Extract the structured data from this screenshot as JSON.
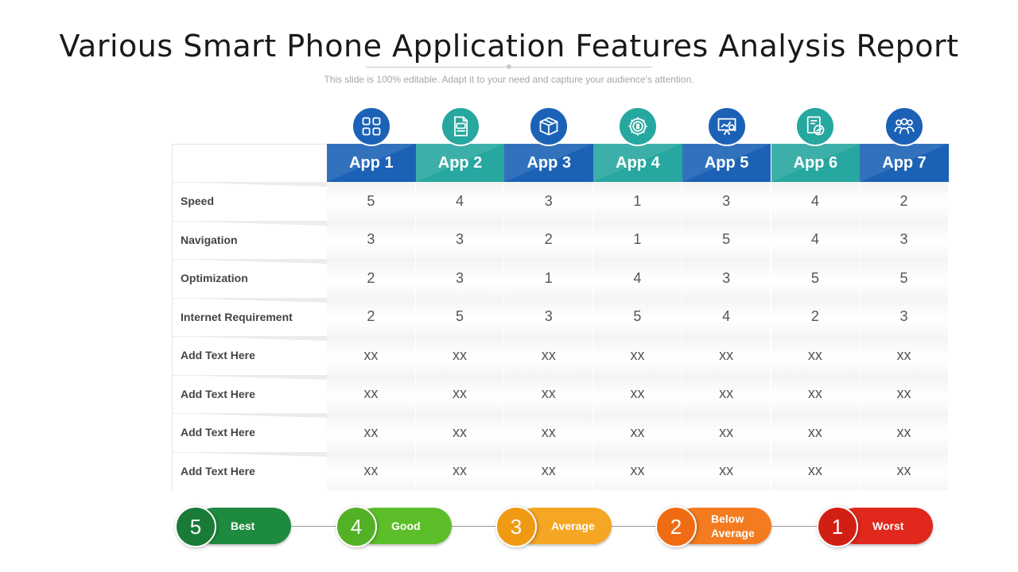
{
  "title": "Various Smart Phone Application Features Analysis Report",
  "subtitle": "This slide is 100% editable. Adapt it to your need and capture your audience's attention.",
  "apps": [
    {
      "label": "App 1",
      "color": "#1b62b6",
      "icon": "grid-icon"
    },
    {
      "label": "App 2",
      "color": "#26a79f",
      "icon": "app-file-icon"
    },
    {
      "label": "App 3",
      "color": "#1b62b6",
      "icon": "box-icon"
    },
    {
      "label": "App 4",
      "color": "#26a79f",
      "icon": "settings-gear-icon"
    },
    {
      "label": "App 5",
      "color": "#1b62b6",
      "icon": "presentation-board-icon"
    },
    {
      "label": "App 6",
      "color": "#26a79f",
      "icon": "report-chart-icon"
    },
    {
      "label": "App 7",
      "color": "#1b62b6",
      "icon": "team-icon"
    }
  ],
  "rows": [
    {
      "label": "Speed",
      "values": [
        "5",
        "4",
        "3",
        "1",
        "3",
        "4",
        "2"
      ]
    },
    {
      "label": "Navigation",
      "values": [
        "3",
        "3",
        "2",
        "1",
        "5",
        "4",
        "3"
      ]
    },
    {
      "label": "Optimization",
      "values": [
        "2",
        "3",
        "1",
        "4",
        "3",
        "5",
        "5"
      ]
    },
    {
      "label": "Internet Requirement",
      "values": [
        "2",
        "5",
        "3",
        "5",
        "4",
        "2",
        "3"
      ]
    },
    {
      "label": "Add Text Here",
      "values": [
        "xx",
        "xx",
        "xx",
        "xx",
        "xx",
        "xx",
        "xx"
      ]
    },
    {
      "label": "Add Text Here",
      "values": [
        "xx",
        "xx",
        "xx",
        "xx",
        "xx",
        "xx",
        "xx"
      ]
    },
    {
      "label": "Add Text Here",
      "values": [
        "xx",
        "xx",
        "xx",
        "xx",
        "xx",
        "xx",
        "xx"
      ]
    },
    {
      "label": "Add Text Here",
      "values": [
        "xx",
        "xx",
        "xx",
        "xx",
        "xx",
        "xx",
        "xx"
      ]
    }
  ],
  "legend": [
    {
      "number": "5",
      "label": "Best",
      "color": "#1e8a3f",
      "num_color": "#1a7a37"
    },
    {
      "number": "4",
      "label": "Good",
      "color": "#5cbf2a",
      "num_color": "#52b125"
    },
    {
      "number": "3",
      "label": "Average",
      "color": "#f5a623",
      "num_color": "#f09a14"
    },
    {
      "number": "2",
      "label": "Below Average",
      "color": "#f47b20",
      "num_color": "#ef6c12"
    },
    {
      "number": "1",
      "label": "Worst",
      "color": "#e0281c",
      "num_color": "#d21f14"
    }
  ]
}
